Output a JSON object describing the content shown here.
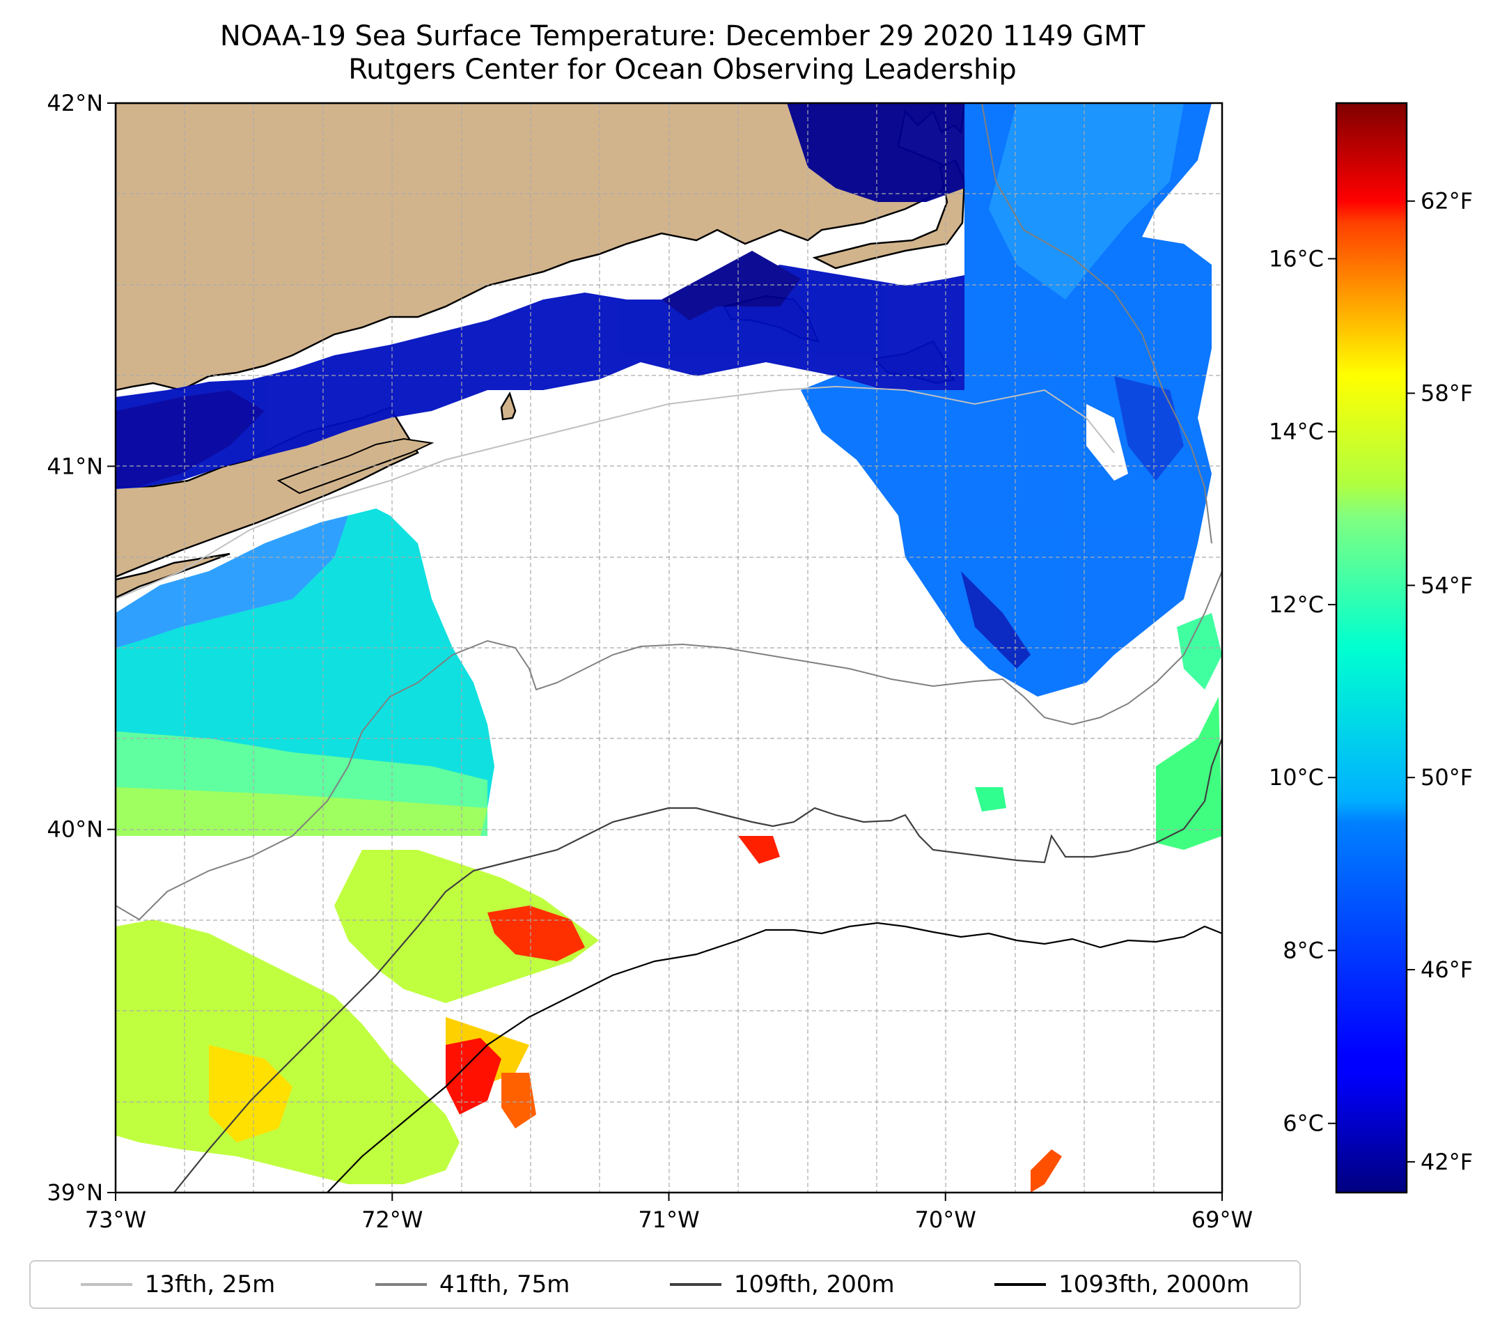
{
  "title": {
    "line1": "NOAA-19 Sea Surface Temperature: December 29 2020 1149 GMT",
    "line2": "Rutgers Center for Ocean Observing Leadership"
  },
  "axes": {
    "lon_range": [
      -73,
      -69
    ],
    "lat_range": [
      39,
      42
    ],
    "x_ticks": [
      {
        "value": -73,
        "label": "73°W"
      },
      {
        "value": -72,
        "label": "72°W"
      },
      {
        "value": -71,
        "label": "71°W"
      },
      {
        "value": -70,
        "label": "70°W"
      },
      {
        "value": -69,
        "label": "69°W"
      }
    ],
    "y_ticks": [
      {
        "value": 42,
        "label": "42°N"
      },
      {
        "value": 41,
        "label": "41°N"
      },
      {
        "value": 40,
        "label": "40°N"
      },
      {
        "value": 39,
        "label": "39°N"
      }
    ],
    "grid": true
  },
  "colorbar": {
    "colormap": "jet",
    "celsius_range": [
      5.2,
      17.8
    ],
    "celsius_ticks": [
      {
        "value": 6,
        "label": "6°C"
      },
      {
        "value": 8,
        "label": "8°C"
      },
      {
        "value": 10,
        "label": "10°C"
      },
      {
        "value": 12,
        "label": "12°C"
      },
      {
        "value": 14,
        "label": "14°C"
      },
      {
        "value": 16,
        "label": "16°C"
      }
    ],
    "fahrenheit_ticks": [
      {
        "value": 42,
        "label": "42°F"
      },
      {
        "value": 46,
        "label": "46°F"
      },
      {
        "value": 50,
        "label": "50°F"
      },
      {
        "value": 54,
        "label": "54°F"
      },
      {
        "value": 58,
        "label": "58°F"
      },
      {
        "value": 62,
        "label": "62°F"
      }
    ]
  },
  "legend": {
    "placement": "bottom",
    "items": [
      {
        "label": "13fth, 25m",
        "color": "#c0c0c0"
      },
      {
        "label": "41fth, 75m",
        "color": "#808080"
      },
      {
        "label": "109fth, 200m",
        "color": "#404040"
      },
      {
        "label": "1093fth, 2000m",
        "color": "#000000"
      }
    ]
  },
  "colors": {
    "land": "#d2b48c",
    "coastline": "#000000"
  }
}
